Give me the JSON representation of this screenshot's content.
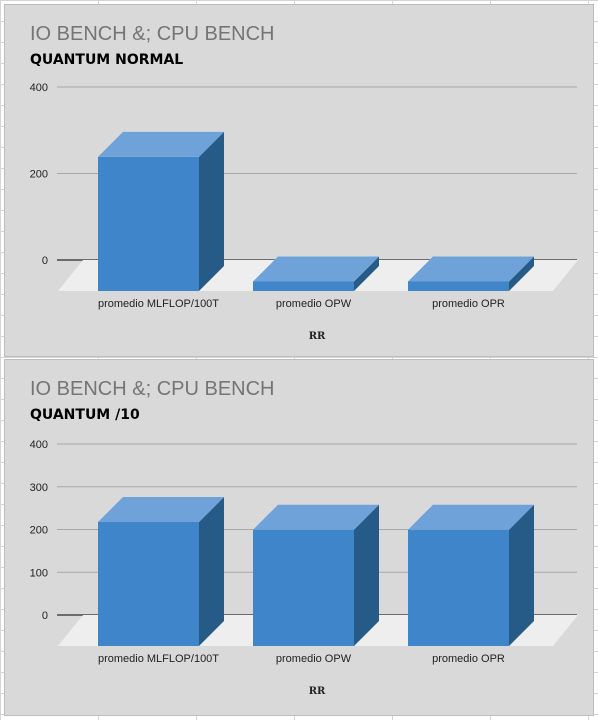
{
  "chart_data": [
    {
      "type": "bar",
      "title": "IO BENCH &; CPU BENCH",
      "subtitle": "QUANTUM NORMAL",
      "categories": [
        "promedio MLFLOP/100T",
        "promedio OPW",
        "promedio OPR"
      ],
      "values": [
        310,
        22,
        22
      ],
      "xlabel": "RR",
      "ylabel": "",
      "ylim": [
        0,
        400
      ],
      "yticks": [
        0,
        200,
        400
      ],
      "grid": true,
      "legend": "none",
      "bar_color": "#3f85c9",
      "style": "3d-column"
    },
    {
      "type": "bar",
      "title": "IO BENCH &; CPU BENCH",
      "subtitle": "QUANTUM /10",
      "categories": [
        "promedio MLFLOP/100T",
        "promedio OPW",
        "promedio OPR"
      ],
      "values": [
        290,
        272,
        272
      ],
      "xlabel": "RR",
      "ylabel": "",
      "ylim": [
        0,
        400
      ],
      "yticks": [
        0,
        100,
        200,
        300,
        400
      ],
      "grid": true,
      "legend": "none",
      "bar_color": "#3f85c9",
      "style": "3d-column"
    }
  ]
}
